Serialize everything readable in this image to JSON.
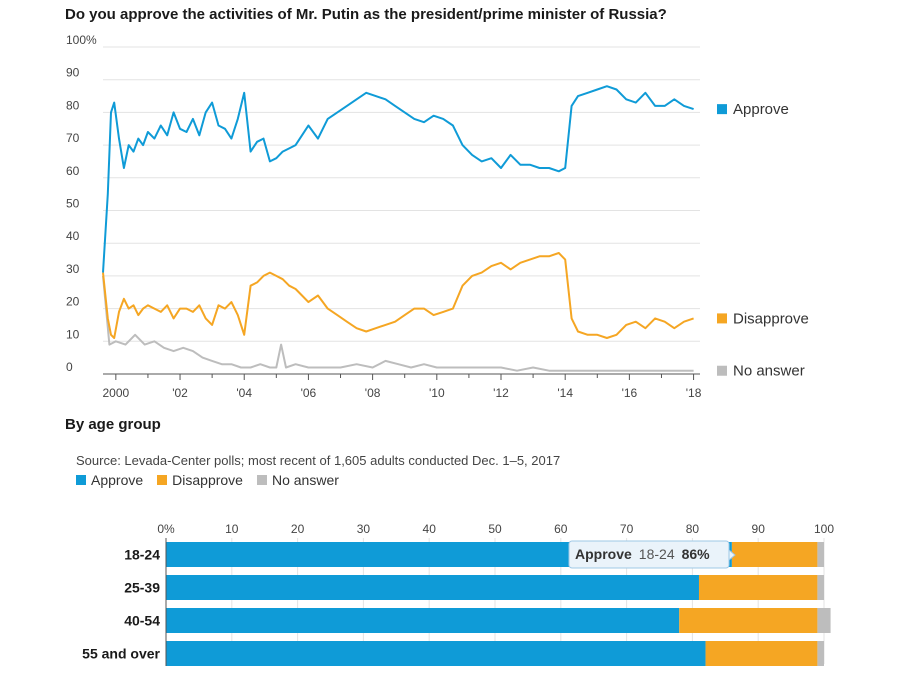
{
  "colors": {
    "approve": "#0f9bd7",
    "disapprove": "#f5a623",
    "no_answer": "#bdbdbd",
    "grid": "#e3e3e3"
  },
  "chart_data": [
    {
      "type": "line",
      "title": "Do you approve the activities of Mr. Putin as the president/prime minister of Russia?",
      "y_tick_labels": [
        "0",
        "10",
        "20",
        "30",
        "40",
        "50",
        "60",
        "70",
        "80",
        "90",
        "100%"
      ],
      "x_tick_labels": [
        "2000",
        "'02",
        "'04",
        "'06",
        "'08",
        "'10",
        "'12",
        "'14",
        "'16",
        "'18"
      ],
      "x_tick_years": [
        2000,
        2002,
        2004,
        2006,
        2008,
        2010,
        2012,
        2014,
        2016,
        2018
      ],
      "xlim": [
        1999.6,
        2018.2
      ],
      "ylim": [
        0,
        100
      ],
      "series": [
        {
          "name": "Approve",
          "key": "approve",
          "x": [
            1999.6,
            1999.75,
            1999.85,
            1999.95,
            2000.1,
            2000.25,
            2000.4,
            2000.55,
            2000.7,
            2000.85,
            2001.0,
            2001.2,
            2001.4,
            2001.6,
            2001.8,
            2002.0,
            2002.2,
            2002.4,
            2002.6,
            2002.8,
            2003.0,
            2003.2,
            2003.4,
            2003.6,
            2003.8,
            2004.0,
            2004.2,
            2004.4,
            2004.6,
            2004.8,
            2005.0,
            2005.2,
            2005.4,
            2005.6,
            2005.8,
            2006.0,
            2006.3,
            2006.6,
            2006.9,
            2007.2,
            2007.5,
            2007.8,
            2008.1,
            2008.4,
            2008.7,
            2009.0,
            2009.3,
            2009.6,
            2009.9,
            2010.2,
            2010.5,
            2010.8,
            2011.1,
            2011.4,
            2011.7,
            2012.0,
            2012.3,
            2012.6,
            2012.9,
            2013.2,
            2013.5,
            2013.8,
            2014.0,
            2014.2,
            2014.4,
            2014.7,
            2015.0,
            2015.3,
            2015.6,
            2015.9,
            2016.2,
            2016.5,
            2016.8,
            2017.1,
            2017.4,
            2017.7,
            2018.0
          ],
          "values": [
            31,
            55,
            80,
            83,
            72,
            63,
            70,
            68,
            72,
            70,
            74,
            72,
            76,
            73,
            80,
            75,
            74,
            78,
            73,
            80,
            83,
            76,
            75,
            72,
            78,
            86,
            68,
            71,
            72,
            65,
            66,
            68,
            69,
            70,
            73,
            76,
            72,
            78,
            80,
            82,
            84,
            86,
            85,
            84,
            82,
            80,
            78,
            77,
            79,
            78,
            76,
            70,
            67,
            65,
            66,
            63,
            67,
            64,
            64,
            63,
            63,
            62,
            63,
            82,
            85,
            86,
            87,
            88,
            87,
            84,
            83,
            86,
            82,
            82,
            84,
            82,
            81
          ]
        },
        {
          "name": "Disapprove",
          "key": "disapprove",
          "x": [
            1999.6,
            1999.75,
            1999.85,
            1999.95,
            2000.1,
            2000.25,
            2000.4,
            2000.55,
            2000.7,
            2000.85,
            2001.0,
            2001.2,
            2001.4,
            2001.6,
            2001.8,
            2002.0,
            2002.2,
            2002.4,
            2002.6,
            2002.8,
            2003.0,
            2003.2,
            2003.4,
            2003.6,
            2003.8,
            2004.0,
            2004.2,
            2004.4,
            2004.6,
            2004.8,
            2005.0,
            2005.2,
            2005.4,
            2005.6,
            2005.8,
            2006.0,
            2006.3,
            2006.6,
            2006.9,
            2007.2,
            2007.5,
            2007.8,
            2008.1,
            2008.4,
            2008.7,
            2009.0,
            2009.3,
            2009.6,
            2009.9,
            2010.2,
            2010.5,
            2010.8,
            2011.1,
            2011.4,
            2011.7,
            2012.0,
            2012.3,
            2012.6,
            2012.9,
            2013.2,
            2013.5,
            2013.8,
            2014.0,
            2014.2,
            2014.4,
            2014.7,
            2015.0,
            2015.3,
            2015.6,
            2015.9,
            2016.2,
            2016.5,
            2016.8,
            2017.1,
            2017.4,
            2017.7,
            2018.0
          ],
          "values": [
            31,
            17,
            12,
            11,
            19,
            23,
            20,
            21,
            18,
            20,
            21,
            20,
            19,
            21,
            17,
            20,
            20,
            19,
            21,
            17,
            15,
            21,
            20,
            22,
            18,
            12,
            27,
            28,
            30,
            31,
            30,
            29,
            27,
            26,
            24,
            22,
            24,
            20,
            18,
            16,
            14,
            13,
            14,
            15,
            16,
            18,
            20,
            20,
            18,
            19,
            20,
            27,
            30,
            31,
            33,
            34,
            32,
            34,
            35,
            36,
            36,
            37,
            35,
            17,
            13,
            12,
            12,
            11,
            12,
            15,
            16,
            14,
            17,
            16,
            14,
            16,
            17
          ]
        },
        {
          "name": "No answer",
          "key": "no_answer",
          "x": [
            1999.6,
            1999.8,
            2000.0,
            2000.3,
            2000.6,
            2000.9,
            2001.2,
            2001.5,
            2001.8,
            2002.1,
            2002.4,
            2002.7,
            2003.0,
            2003.3,
            2003.6,
            2003.9,
            2004.2,
            2004.5,
            2004.8,
            2005.0,
            2005.15,
            2005.3,
            2005.6,
            2006.0,
            2006.5,
            2007.0,
            2007.5,
            2008.0,
            2008.4,
            2008.8,
            2009.2,
            2009.6,
            2010.0,
            2010.5,
            2011.0,
            2011.5,
            2012.0,
            2012.5,
            2013.0,
            2013.5,
            2014.0,
            2014.5,
            2015.0,
            2015.5,
            2016.0,
            2016.5,
            2017.0,
            2017.5,
            2018.0
          ],
          "values": [
            30,
            9,
            10,
            9,
            12,
            9,
            10,
            8,
            7,
            8,
            7,
            5,
            4,
            3,
            3,
            2,
            2,
            3,
            2,
            2,
            9,
            2,
            3,
            2,
            2,
            2,
            3,
            2,
            4,
            3,
            2,
            3,
            2,
            2,
            2,
            2,
            2,
            1,
            2,
            1,
            1,
            1,
            1,
            1,
            1,
            1,
            1,
            1,
            1
          ]
        }
      ],
      "legend": [
        {
          "label": "Approve",
          "key": "approve",
          "value": 81
        },
        {
          "label": "Disapprove",
          "key": "disapprove",
          "value": 17
        },
        {
          "label": "No answer",
          "key": "no_answer",
          "value": 1
        }
      ]
    },
    {
      "type": "bar",
      "orientation": "horizontal",
      "stacked": true,
      "title": "By age group",
      "source": "Source: Levada-Center polls; most recent of 1,605 adults conducted Dec. 1–5, 2017",
      "x_tick_labels": [
        "0%",
        "10",
        "20",
        "30",
        "40",
        "50",
        "60",
        "70",
        "80",
        "90",
        "100"
      ],
      "xlim": [
        0,
        100
      ],
      "categories": [
        "18-24",
        "25-39",
        "40-54",
        "55 and over"
      ],
      "series": [
        {
          "name": "Approve",
          "key": "approve",
          "values": [
            86,
            81,
            78,
            82
          ]
        },
        {
          "name": "Disapprove",
          "key": "disapprove",
          "values": [
            13,
            18,
            21,
            17
          ]
        },
        {
          "name": "No answer",
          "key": "no_answer",
          "values": [
            1,
            1,
            2,
            1
          ]
        }
      ],
      "legend": [
        "Approve",
        "Disapprove",
        "No answer"
      ],
      "tooltip": {
        "series": "Approve",
        "category": "18-24",
        "value": "86%"
      }
    }
  ]
}
